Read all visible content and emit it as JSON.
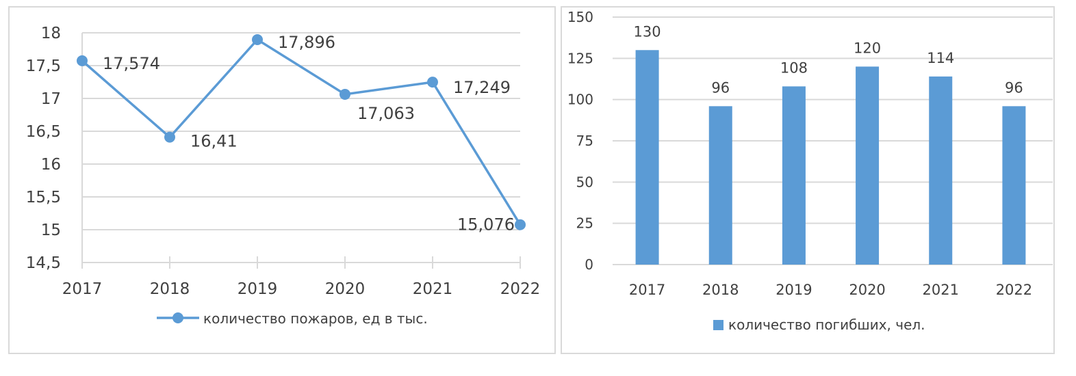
{
  "chart_data": [
    {
      "type": "line",
      "categories": [
        "2017",
        "2018",
        "2019",
        "2020",
        "2021",
        "2022"
      ],
      "series": [
        {
          "name": "количество пожаров, ед в тыс.",
          "values": [
            17.574,
            16.41,
            17.896,
            17.063,
            17.249,
            15.076
          ],
          "labels": [
            "17,574",
            "16,41",
            "17,896",
            "17,063",
            "17,249",
            "15,076"
          ]
        }
      ],
      "yticks": [
        "14,5",
        "15",
        "15,5",
        "16",
        "16,5",
        "17",
        "17,5",
        "18"
      ],
      "ytick_values": [
        14.5,
        15,
        15.5,
        16,
        16.5,
        17,
        17.5,
        18
      ],
      "ylim": [
        14.5,
        18
      ],
      "grid": true,
      "legend": "bottom",
      "color": "#5b9bd5"
    },
    {
      "type": "bar",
      "categories": [
        "2017",
        "2018",
        "2019",
        "2020",
        "2021",
        "2022"
      ],
      "series": [
        {
          "name": "количество погибших, чел.",
          "values": [
            130,
            96,
            108,
            120,
            114,
            96
          ]
        }
      ],
      "yticks": [
        "0",
        "25",
        "50",
        "75",
        "100",
        "125",
        "150"
      ],
      "ytick_values": [
        0,
        25,
        50,
        75,
        100,
        125,
        150
      ],
      "ylim": [
        0,
        150
      ],
      "grid": true,
      "legend": "bottom",
      "color": "#5b9bd5"
    }
  ]
}
